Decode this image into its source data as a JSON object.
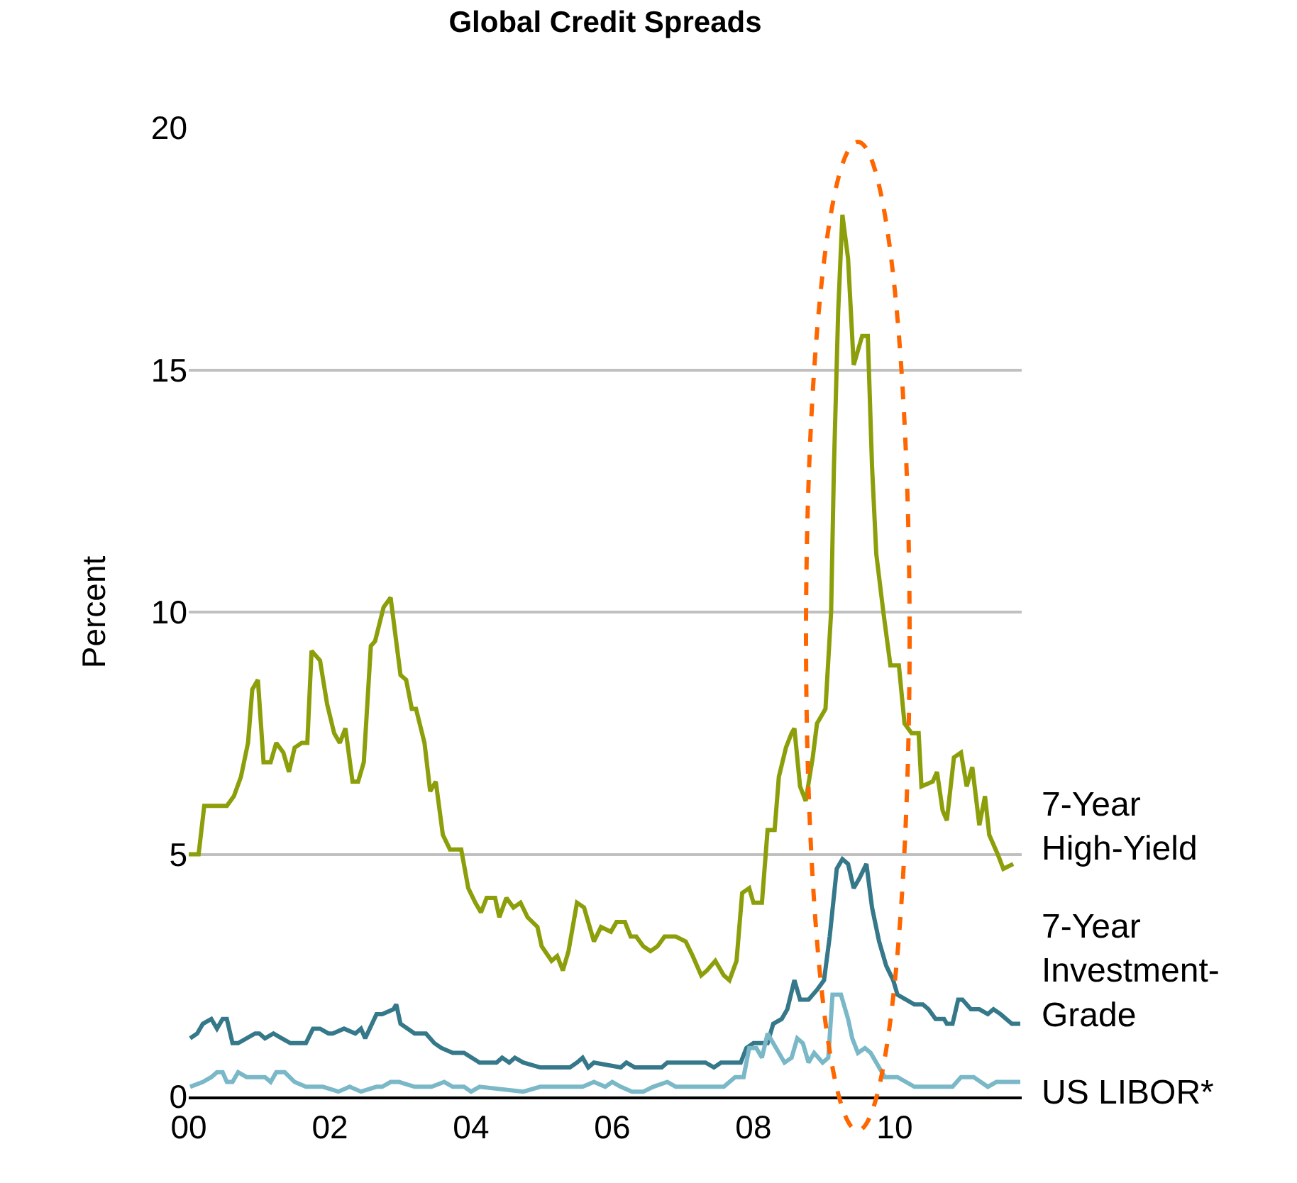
{
  "chart_data": {
    "type": "line",
    "title": "Global Credit Spreads",
    "ylabel": "Percent",
    "xlim": [
      0,
      11.8
    ],
    "xticks": [
      {
        "value": 0,
        "label": "00"
      },
      {
        "value": 2,
        "label": "02"
      },
      {
        "value": 4,
        "label": "04"
      },
      {
        "value": 6,
        "label": "06"
      },
      {
        "value": 8,
        "label": "08"
      },
      {
        "value": 10,
        "label": "10"
      }
    ],
    "ylim": [
      0,
      20
    ],
    "yticks": [
      0,
      5,
      10,
      15,
      20
    ],
    "grid": "y",
    "legend": false,
    "line_style": "solid",
    "marker": "none",
    "series": [
      {
        "name": "7-Year\nHigh-Yield",
        "color": "#8c9f0a",
        "x": [
          0,
          0.14,
          0.22,
          0.54,
          0.64,
          0.74,
          0.84,
          0.9,
          0.98,
          1.06,
          1.16,
          1.24,
          1.34,
          1.42,
          1.5,
          1.6,
          1.68,
          1.74,
          1.86,
          1.96,
          2.06,
          2.14,
          2.22,
          2.32,
          2.4,
          2.48,
          2.58,
          2.64,
          2.76,
          2.86,
          3.0,
          3.08,
          3.16,
          3.22,
          3.34,
          3.42,
          3.5,
          3.6,
          3.7,
          3.86,
          3.96,
          4.06,
          4.14,
          4.22,
          4.34,
          4.4,
          4.5,
          4.6,
          4.7,
          4.8,
          4.94,
          5.0,
          5.14,
          5.22,
          5.3,
          5.38,
          5.5,
          5.6,
          5.66,
          5.74,
          5.84,
          5.98,
          6.06,
          6.18,
          6.26,
          6.34,
          6.44,
          6.54,
          6.64,
          6.74,
          6.9,
          7.04,
          7.14,
          7.26,
          7.34,
          7.46,
          7.58,
          7.66,
          7.76,
          7.84,
          7.94,
          8.0,
          8.12,
          8.2,
          8.3,
          8.36,
          8.46,
          8.54,
          8.58,
          8.66,
          8.74,
          8.84,
          8.9,
          9.02,
          9.1,
          9.14,
          9.2,
          9.26,
          9.34,
          9.42,
          9.54,
          9.62,
          9.68,
          9.74,
          9.84,
          9.94,
          10.06,
          10.14,
          10.24,
          10.34,
          10.38,
          10.54,
          10.6,
          10.68,
          10.74,
          10.84,
          10.94,
          11.02,
          11.1,
          11.2,
          11.28,
          11.34,
          11.46,
          11.54,
          11.68
        ],
        "values": [
          5.0,
          5.0,
          6.0,
          6.0,
          6.2,
          6.6,
          7.3,
          8.4,
          8.6,
          6.9,
          6.9,
          7.3,
          7.1,
          6.7,
          7.2,
          7.3,
          7.3,
          9.2,
          9.0,
          8.1,
          7.5,
          7.3,
          7.6,
          6.5,
          6.5,
          6.9,
          9.3,
          9.4,
          10.1,
          10.3,
          8.7,
          8.6,
          8.0,
          8.0,
          7.3,
          6.3,
          6.5,
          5.4,
          5.1,
          5.1,
          4.3,
          4.0,
          3.8,
          4.1,
          4.1,
          3.7,
          4.1,
          3.9,
          4.0,
          3.7,
          3.5,
          3.1,
          2.8,
          2.9,
          2.6,
          3.0,
          4.0,
          3.9,
          3.6,
          3.2,
          3.5,
          3.4,
          3.6,
          3.6,
          3.3,
          3.3,
          3.1,
          3.0,
          3.1,
          3.3,
          3.3,
          3.2,
          2.9,
          2.5,
          2.6,
          2.8,
          2.5,
          2.4,
          2.8,
          4.2,
          4.3,
          4.0,
          4.0,
          5.5,
          5.5,
          6.6,
          7.2,
          7.5,
          7.6,
          6.4,
          6.1,
          7.0,
          7.7,
          8.0,
          10.0,
          13.0,
          16.2,
          18.2,
          17.3,
          15.1,
          15.7,
          15.7,
          13.0,
          11.2,
          10.0,
          8.9,
          8.9,
          7.7,
          7.5,
          7.5,
          6.4,
          6.5,
          6.7,
          5.9,
          5.7,
          7.0,
          7.1,
          6.4,
          6.8,
          5.6,
          6.2,
          5.4,
          5.0,
          4.7,
          4.8
        ]
      },
      {
        "name": "7-Year\nInvestment-\nGrade",
        "color": "#35788a",
        "x": [
          0.02,
          0.12,
          0.2,
          0.32,
          0.4,
          0.48,
          0.54,
          0.62,
          0.7,
          0.94,
          1.0,
          1.08,
          1.2,
          1.32,
          1.44,
          1.66,
          1.76,
          1.86,
          1.98,
          2.04,
          2.2,
          2.36,
          2.44,
          2.5,
          2.66,
          2.74,
          2.9,
          2.94,
          3.0,
          3.2,
          3.36,
          3.48,
          3.58,
          3.74,
          3.9,
          4.12,
          4.36,
          4.44,
          4.54,
          4.62,
          4.74,
          4.98,
          5.12,
          5.2,
          5.4,
          5.5,
          5.58,
          5.66,
          5.74,
          6.12,
          6.2,
          6.32,
          6.7,
          6.78,
          7.32,
          7.44,
          7.54,
          7.82,
          7.9,
          8.0,
          8.12,
          8.2,
          8.28,
          8.4,
          8.48,
          8.58,
          8.66,
          8.78,
          8.9,
          9.0,
          9.08,
          9.18,
          9.26,
          9.34,
          9.42,
          9.5,
          9.6,
          9.68,
          9.78,
          9.88,
          9.98,
          10.04,
          10.16,
          10.28,
          10.4,
          10.48,
          10.58,
          10.7,
          10.74,
          10.82,
          10.9,
          10.96,
          11.08,
          11.2,
          11.32,
          11.4,
          11.5,
          11.66,
          11.78
        ],
        "values": [
          1.2,
          1.3,
          1.5,
          1.6,
          1.4,
          1.6,
          1.6,
          1.1,
          1.1,
          1.3,
          1.3,
          1.2,
          1.3,
          1.2,
          1.1,
          1.1,
          1.4,
          1.4,
          1.3,
          1.3,
          1.4,
          1.3,
          1.4,
          1.2,
          1.7,
          1.7,
          1.8,
          1.9,
          1.5,
          1.3,
          1.3,
          1.1,
          1.0,
          0.9,
          0.9,
          0.7,
          0.7,
          0.8,
          0.7,
          0.8,
          0.7,
          0.6,
          0.6,
          0.6,
          0.6,
          0.7,
          0.8,
          0.6,
          0.7,
          0.6,
          0.7,
          0.6,
          0.6,
          0.7,
          0.7,
          0.6,
          0.7,
          0.7,
          1.0,
          1.1,
          1.1,
          1.1,
          1.5,
          1.6,
          1.8,
          2.4,
          2.0,
          2.0,
          2.2,
          2.4,
          3.3,
          4.7,
          4.9,
          4.8,
          4.3,
          4.5,
          4.8,
          3.9,
          3.2,
          2.7,
          2.4,
          2.1,
          2.0,
          1.9,
          1.9,
          1.8,
          1.6,
          1.6,
          1.5,
          1.5,
          2.0,
          2.0,
          1.8,
          1.8,
          1.7,
          1.8,
          1.7,
          1.5,
          1.5
        ]
      },
      {
        "name": "US LIBOR*",
        "color": "#7ab8c8",
        "x": [
          0.02,
          0.2,
          0.32,
          0.4,
          0.48,
          0.54,
          0.62,
          0.7,
          0.82,
          0.98,
          1.08,
          1.16,
          1.24,
          1.36,
          1.5,
          1.66,
          1.78,
          1.9,
          2.12,
          2.28,
          2.44,
          2.66,
          2.74,
          2.86,
          2.98,
          3.2,
          3.44,
          3.62,
          3.74,
          3.9,
          4.0,
          4.12,
          4.74,
          4.98,
          5.12,
          5.36,
          5.58,
          5.74,
          5.9,
          6.0,
          6.12,
          6.28,
          6.44,
          6.58,
          6.78,
          6.9,
          7.12,
          7.44,
          7.58,
          7.74,
          7.86,
          7.94,
          8.04,
          8.12,
          8.2,
          8.28,
          8.44,
          8.54,
          8.62,
          8.7,
          8.78,
          8.86,
          8.98,
          9.06,
          9.12,
          9.24,
          9.34,
          9.4,
          9.48,
          9.58,
          9.66,
          9.86,
          10.04,
          10.28,
          10.82,
          10.94,
          11.12,
          11.32,
          11.44,
          11.78
        ],
        "values": [
          0.2,
          0.3,
          0.4,
          0.5,
          0.5,
          0.3,
          0.3,
          0.5,
          0.4,
          0.4,
          0.4,
          0.3,
          0.5,
          0.5,
          0.3,
          0.2,
          0.2,
          0.2,
          0.1,
          0.2,
          0.1,
          0.2,
          0.2,
          0.3,
          0.3,
          0.2,
          0.2,
          0.3,
          0.2,
          0.2,
          0.1,
          0.2,
          0.1,
          0.2,
          0.2,
          0.2,
          0.2,
          0.3,
          0.2,
          0.3,
          0.2,
          0.1,
          0.1,
          0.2,
          0.3,
          0.2,
          0.2,
          0.2,
          0.2,
          0.4,
          0.4,
          1.0,
          1.0,
          0.8,
          1.3,
          1.1,
          0.7,
          0.8,
          1.2,
          1.1,
          0.7,
          0.9,
          0.7,
          0.8,
          2.1,
          2.1,
          1.6,
          1.2,
          0.9,
          1.0,
          0.9,
          0.4,
          0.4,
          0.2,
          0.2,
          0.4,
          0.4,
          0.2,
          0.3,
          0.3
        ]
      }
    ]
  }
}
